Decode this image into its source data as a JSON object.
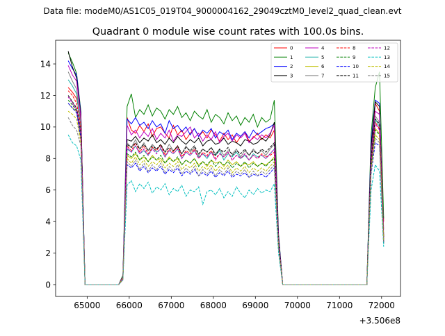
{
  "figure": {
    "suptitle": "Data file: modeM0/AS1C05_019T04_9000004162_29049cztM0_level2_quad_clean.evt",
    "title": "Quadrant 0 module wise count rates with 100.0s bins.",
    "x_offset_label": "+3.506e8"
  },
  "chart_data": {
    "type": "line",
    "title": "Quadrant 0 module wise count rates with 100.0s bins.",
    "xlabel": "",
    "ylabel": "",
    "x_offset": "+3.506e8",
    "xlim": [
      64250,
      72450
    ],
    "ylim": [
      -0.75,
      15.5
    ],
    "xticks": [
      65000,
      66000,
      67000,
      68000,
      69000,
      70000,
      71000,
      72000
    ],
    "yticks": [
      0,
      2,
      4,
      6,
      8,
      10,
      12,
      14
    ],
    "grid": false,
    "legend": {
      "placement": "top-right",
      "columns": 4
    },
    "x": [
      64550,
      64650,
      64750,
      64850,
      64950,
      65050,
      65750,
      65850,
      65950,
      66050,
      66150,
      66250,
      66350,
      66450,
      66550,
      66650,
      66750,
      66850,
      66950,
      67050,
      67150,
      67250,
      67350,
      67450,
      67550,
      67650,
      67750,
      67850,
      67950,
      68050,
      68150,
      68250,
      68350,
      68450,
      68550,
      68650,
      68750,
      68850,
      68950,
      69050,
      69150,
      69250,
      69350,
      69450,
      69550,
      69650,
      71650,
      71750,
      71850,
      71950,
      72050
    ],
    "series": [
      {
        "name": "0",
        "color": "#ff0000",
        "dash": "solid",
        "values": [
          12.5,
          12.2,
          11.8,
          10.5,
          0,
          0,
          0,
          0.4,
          10.6,
          9.8,
          9.6,
          10.1,
          9.7,
          10.2,
          9.4,
          9.9,
          10.0,
          9.6,
          9.3,
          10.1,
          9.5,
          9.8,
          9.2,
          9.6,
          9.9,
          9.4,
          9.7,
          9.3,
          9.8,
          9.5,
          9.1,
          9.6,
          9.2,
          9.5,
          9.0,
          9.4,
          9.7,
          9.1,
          9.3,
          9.6,
          9.2,
          9.5,
          9.3,
          9.8,
          3.0,
          0,
          0,
          8.5,
          11.5,
          11.0,
          4.0
        ]
      },
      {
        "name": "1",
        "color": "#008000",
        "dash": "solid",
        "values": [
          14.7,
          14.1,
          13.4,
          11.0,
          0,
          0,
          0,
          0.6,
          11.3,
          12.1,
          10.6,
          11.1,
          10.8,
          11.4,
          10.7,
          11.2,
          11.0,
          10.5,
          11.1,
          10.8,
          11.3,
          10.6,
          10.9,
          10.4,
          11.0,
          10.7,
          10.5,
          11.1,
          10.3,
          10.8,
          10.6,
          10.2,
          10.9,
          10.4,
          10.7,
          10.1,
          10.6,
          10.3,
          10.8,
          10.0,
          10.6,
          10.3,
          10.5,
          11.7,
          3.2,
          0,
          0,
          9.5,
          12.5,
          13.5,
          4.2
        ]
      },
      {
        "name": "2",
        "color": "#0000ff",
        "dash": "solid",
        "values": [
          14.2,
          13.7,
          13.3,
          10.9,
          0,
          0,
          0,
          0.5,
          10.5,
          10.2,
          10.6,
          10.1,
          10.3,
          9.9,
          10.4,
          10.0,
          10.2,
          9.6,
          10.4,
          9.9,
          10.1,
          9.7,
          10.0,
          9.5,
          9.9,
          9.4,
          9.8,
          9.6,
          9.9,
          9.3,
          9.7,
          9.5,
          9.8,
          9.2,
          9.6,
          9.4,
          9.7,
          9.3,
          9.8,
          9.5,
          9.7,
          9.9,
          10.0,
          10.2,
          3.1,
          0,
          0,
          9.0,
          11.7,
          11.5,
          2.7
        ]
      },
      {
        "name": "3",
        "color": "#000000",
        "dash": "solid",
        "values": [
          14.8,
          13.8,
          13.1,
          10.8,
          0,
          0,
          0,
          0.5,
          9.2,
          9.1,
          9.4,
          9.0,
          9.3,
          9.1,
          9.5,
          9.0,
          9.2,
          8.9,
          9.3,
          9.0,
          9.4,
          9.1,
          8.9,
          9.2,
          9.0,
          9.3,
          8.8,
          9.1,
          9.2,
          8.9,
          9.0,
          9.3,
          8.9,
          9.1,
          9.0,
          8.8,
          9.2,
          9.1,
          8.9,
          9.0,
          9.3,
          9.1,
          9.5,
          10.3,
          3.0,
          0,
          0,
          8.7,
          11.6,
          11.3,
          2.6
        ]
      },
      {
        "name": "4",
        "color": "#bf00bf",
        "dash": "solid",
        "values": [
          13.9,
          13.3,
          12.9,
          10.6,
          0,
          0,
          0,
          0.5,
          10.1,
          9.5,
          9.8,
          9.3,
          9.7,
          9.4,
          9.9,
          9.2,
          9.6,
          9.3,
          9.8,
          9.1,
          9.5,
          9.4,
          9.7,
          10.0,
          9.3,
          9.6,
          9.1,
          9.5,
          9.2,
          9.7,
          9.0,
          9.4,
          9.6,
          9.1,
          9.5,
          9.3,
          9.6,
          9.0,
          9.4,
          9.2,
          9.5,
          9.3,
          9.6,
          10.1,
          2.9,
          0,
          0,
          8.3,
          11.0,
          10.8,
          3.5
        ]
      },
      {
        "name": "5",
        "color": "#20b2aa",
        "dash": "solid",
        "values": [
          13.0,
          12.6,
          12.1,
          9.9,
          0,
          0,
          0,
          0.4,
          8.6,
          8.4,
          8.8,
          8.3,
          8.5,
          8.2,
          8.7,
          8.4,
          8.6,
          8.1,
          8.5,
          8.3,
          8.6,
          8.0,
          8.4,
          8.2,
          8.5,
          8.1,
          8.3,
          8.0,
          8.4,
          8.2,
          8.5,
          7.9,
          8.3,
          8.1,
          8.4,
          8.0,
          8.2,
          7.9,
          8.3,
          8.1,
          8.2,
          8.0,
          8.3,
          8.6,
          2.7,
          0,
          0,
          7.9,
          10.5,
          10.0,
          3.1
        ]
      },
      {
        "name": "6",
        "color": "#bfbf00",
        "dash": "solid",
        "values": [
          11.5,
          11.2,
          11.0,
          9.2,
          0,
          0,
          0,
          0.4,
          8.2,
          8.0,
          8.3,
          7.9,
          8.1,
          7.8,
          8.2,
          7.9,
          8.0,
          7.7,
          8.1,
          7.8,
          8.0,
          7.6,
          7.9,
          7.7,
          8.0,
          7.6,
          7.8,
          7.5,
          7.9,
          7.7,
          7.8,
          7.5,
          7.9,
          7.6,
          7.8,
          7.5,
          7.7,
          7.6,
          7.8,
          7.5,
          7.7,
          7.6,
          7.8,
          8.1,
          2.5,
          0,
          0,
          7.4,
          9.9,
          9.6,
          3.0
        ]
      },
      {
        "name": "7",
        "color": "#808080",
        "dash": "solid",
        "values": [
          13.5,
          12.9,
          12.4,
          10.2,
          0,
          0,
          0,
          0.4,
          9.0,
          8.7,
          9.2,
          8.6,
          9.0,
          8.5,
          8.9,
          8.6,
          8.8,
          8.4,
          8.9,
          8.5,
          8.7,
          8.3,
          8.8,
          8.4,
          8.7,
          8.2,
          8.6,
          8.4,
          8.7,
          8.3,
          8.6,
          8.2,
          8.5,
          8.3,
          8.6,
          8.1,
          8.5,
          8.2,
          8.6,
          8.3,
          8.5,
          8.2,
          8.6,
          8.9,
          2.8,
          0,
          0,
          8.1,
          10.7,
          10.3,
          3.2
        ]
      },
      {
        "name": "8",
        "color": "#ff0000",
        "dash": "dashed",
        "values": [
          12.3,
          12.0,
          11.5,
          10.0,
          0,
          0,
          0,
          0.4,
          8.8,
          8.5,
          9.0,
          8.4,
          8.8,
          8.3,
          8.7,
          8.5,
          8.9,
          8.2,
          8.6,
          8.4,
          8.8,
          8.1,
          8.5,
          8.3,
          8.6,
          8.0,
          8.4,
          8.2,
          8.5,
          8.0,
          8.3,
          8.1,
          8.4,
          7.9,
          8.2,
          8.0,
          8.3,
          7.9,
          8.2,
          8.0,
          8.3,
          8.1,
          8.2,
          8.4,
          2.6,
          0,
          0,
          7.8,
          10.3,
          9.9,
          3.0
        ]
      },
      {
        "name": "9",
        "color": "#008000",
        "dash": "dashed",
        "values": [
          11.7,
          11.4,
          11.0,
          9.5,
          0,
          0,
          0,
          0.4,
          8.3,
          8.1,
          8.4,
          7.9,
          8.2,
          7.8,
          8.1,
          7.9,
          8.2,
          7.7,
          8.0,
          7.8,
          8.1,
          7.6,
          7.9,
          7.7,
          8.0,
          7.5,
          7.8,
          7.6,
          7.9,
          7.5,
          7.8,
          7.6,
          7.8,
          7.4,
          7.7,
          7.5,
          7.8,
          7.4,
          7.7,
          7.5,
          7.7,
          7.5,
          7.8,
          8.0,
          2.5,
          0,
          0,
          7.5,
          9.8,
          9.5,
          2.9
        ]
      },
      {
        "name": "10",
        "color": "#0000ff",
        "dash": "dashed",
        "values": [
          11.5,
          11.2,
          10.9,
          9.3,
          0,
          0,
          0,
          0.4,
          7.6,
          7.4,
          7.7,
          7.2,
          7.5,
          7.1,
          7.4,
          7.2,
          7.5,
          7.0,
          7.3,
          7.1,
          7.4,
          6.9,
          7.2,
          7.0,
          7.3,
          6.9,
          7.1,
          6.9,
          7.2,
          6.8,
          7.1,
          6.9,
          7.2,
          6.8,
          7.0,
          6.9,
          7.1,
          6.8,
          7.0,
          6.9,
          7.0,
          6.8,
          7.1,
          7.4,
          2.3,
          0,
          0,
          7.0,
          9.0,
          8.8,
          2.7
        ]
      },
      {
        "name": "11",
        "color": "#000000",
        "dash": "dashed",
        "values": [
          12.0,
          11.6,
          11.2,
          9.7,
          0,
          0,
          0,
          0.4,
          8.9,
          8.7,
          9.0,
          8.6,
          8.9,
          8.5,
          8.8,
          8.6,
          8.9,
          8.4,
          8.7,
          8.5,
          8.8,
          8.3,
          8.7,
          8.5,
          8.8,
          8.3,
          8.6,
          8.4,
          8.7,
          8.2,
          8.6,
          8.4,
          8.7,
          8.2,
          8.5,
          8.3,
          8.6,
          8.2,
          8.5,
          8.3,
          8.6,
          8.4,
          8.7,
          9.0,
          2.8,
          0,
          0,
          8.0,
          10.5,
          10.2,
          3.0
        ]
      },
      {
        "name": "12",
        "color": "#bf00bf",
        "dash": "dashed",
        "values": [
          11.9,
          11.5,
          11.1,
          9.6,
          0,
          0,
          0,
          0.4,
          8.7,
          8.4,
          8.8,
          8.3,
          8.6,
          8.2,
          8.6,
          8.3,
          8.7,
          8.1,
          8.5,
          8.3,
          8.6,
          8.0,
          8.4,
          8.2,
          8.5,
          8.0,
          8.3,
          8.1,
          8.4,
          7.9,
          8.3,
          8.1,
          8.4,
          7.9,
          8.2,
          8.0,
          8.3,
          7.9,
          8.2,
          8.0,
          8.2,
          8.0,
          8.3,
          8.6,
          2.7,
          0,
          0,
          7.7,
          10.2,
          9.8,
          2.9
        ]
      },
      {
        "name": "13",
        "color": "#00bfbf",
        "dash": "dashed",
        "values": [
          9.5,
          9.0,
          8.8,
          7.9,
          0,
          0,
          0,
          0.3,
          6.3,
          6.6,
          5.9,
          6.4,
          6.1,
          6.5,
          5.8,
          6.2,
          6.0,
          6.4,
          5.7,
          6.1,
          5.9,
          6.3,
          5.6,
          6.0,
          5.9,
          6.2,
          5.1,
          5.9,
          6.0,
          5.7,
          6.1,
          5.5,
          5.9,
          5.6,
          6.2,
          5.8,
          5.5,
          6.0,
          5.7,
          6.1,
          5.8,
          6.0,
          5.9,
          6.4,
          2.0,
          0,
          0,
          6.0,
          7.6,
          7.2,
          2.4
        ]
      },
      {
        "name": "14",
        "color": "#bfbf00",
        "dash": "dashed",
        "values": [
          11.0,
          10.8,
          10.5,
          9.0,
          0,
          0,
          0,
          0.4,
          8.0,
          7.7,
          8.1,
          7.6,
          7.9,
          7.5,
          7.8,
          7.6,
          7.9,
          7.4,
          7.7,
          7.5,
          7.8,
          7.3,
          7.6,
          7.4,
          7.7,
          7.2,
          7.5,
          7.3,
          7.6,
          7.2,
          7.5,
          7.3,
          7.6,
          7.1,
          7.4,
          7.2,
          7.5,
          7.1,
          7.4,
          7.2,
          7.4,
          7.2,
          7.5,
          7.8,
          2.4,
          0,
          0,
          7.2,
          9.5,
          9.2,
          2.8
        ]
      },
      {
        "name": "15",
        "color": "#808080",
        "dash": "dashed",
        "values": [
          10.6,
          10.1,
          9.8,
          8.8,
          0,
          0,
          0,
          0.3,
          7.8,
          7.5,
          7.9,
          7.3,
          7.7,
          7.2,
          7.6,
          7.3,
          7.7,
          7.1,
          7.5,
          7.2,
          7.6,
          7.0,
          7.4,
          7.1,
          7.5,
          6.9,
          7.3,
          7.0,
          7.4,
          6.9,
          7.3,
          7.0,
          7.4,
          6.9,
          7.2,
          7.0,
          7.3,
          6.8,
          7.2,
          6.9,
          7.2,
          7.0,
          7.3,
          7.6,
          2.3,
          0,
          0,
          7.1,
          9.3,
          9.0,
          2.7
        ]
      }
    ]
  }
}
